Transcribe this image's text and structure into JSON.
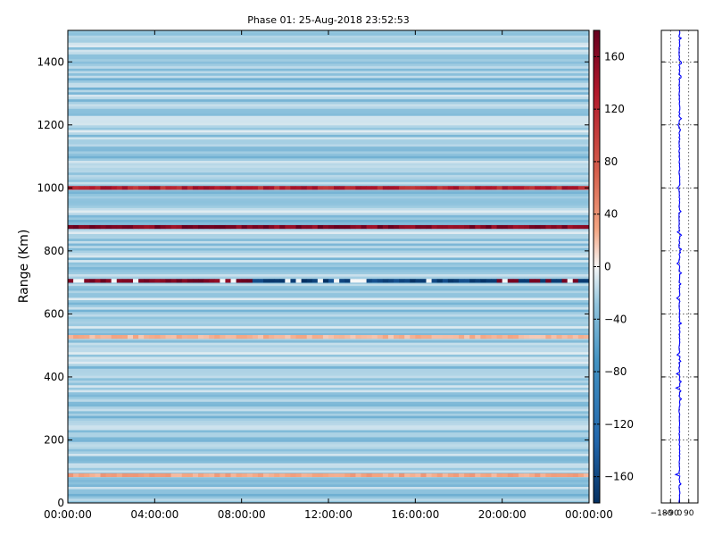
{
  "chart_data": [
    {
      "type": "heatmap",
      "title": "Phase 01: 25-Aug-2018 23:52:53",
      "ylabel": "Range (Km)",
      "xlabel": "",
      "xlim": [
        "00:00:00",
        "24:00:00"
      ],
      "ylim": [
        0,
        1500
      ],
      "x_ticks": [
        "00:00:00",
        "04:00:00",
        "08:00:00",
        "12:00:00",
        "16:00:00",
        "20:00:00",
        "00:00:00"
      ],
      "y_ticks": [
        "0",
        "200",
        "400",
        "600",
        "800",
        "1000",
        "1200",
        "1400"
      ],
      "colorbar": {
        "range": [
          -180,
          180
        ],
        "ticks": [
          "160",
          "120",
          "80",
          "40",
          "0",
          "−40",
          "−80",
          "−120",
          "−160"
        ],
        "colormap": "RdBu_r",
        "colors": {
          "low": "#053061",
          "mid": "#f7f7f7",
          "high": "#67001f"
        }
      },
      "grid": false,
      "bands": [
        {
          "range": 1000,
          "phase": 130
        },
        {
          "range": 876,
          "phase": 165
        },
        {
          "range": 705,
          "phase": "mixed ±180"
        },
        {
          "range": 527,
          "phase": 35
        },
        {
          "range": 88,
          "phase": 45
        }
      ]
    },
    {
      "type": "line",
      "title": "",
      "xlabel": "",
      "ylabel": "",
      "xlim": [
        -180,
        180
      ],
      "ylim": [
        0,
        1500
      ],
      "x_ticks": [
        "−180",
        "−90",
        "0",
        "90"
      ],
      "grid": true,
      "series_color": "#0000ff"
    }
  ]
}
